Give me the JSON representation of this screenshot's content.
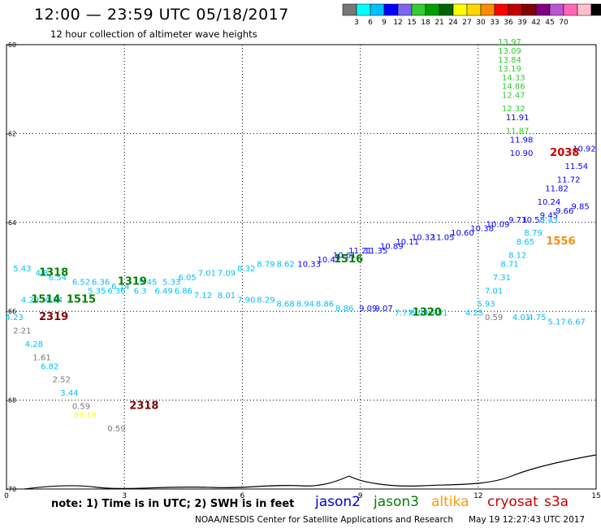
{
  "header": {
    "title": "12:00 — 23:59 UTC 05/18/2017",
    "subtitle": "12 hour collection of altimeter wave heights"
  },
  "legend": {
    "unit": "(ft)",
    "colors": [
      "#777777",
      "#00ffff",
      "#00bfff",
      "#0000ff",
      "#7b68ee",
      "#32cd32",
      "#00a000",
      "#006400",
      "#ffff00",
      "#ffd700",
      "#ff8c00",
      "#ff0000",
      "#c00000",
      "#800000",
      "#800080",
      "#ba55d3",
      "#ff69b4",
      "#ffc0cb",
      "#000000"
    ],
    "labels": [
      "3",
      "6",
      "9",
      "12",
      "15",
      "18",
      "21",
      "24",
      "27",
      "30",
      "33",
      "36",
      "39",
      "42",
      "45",
      "70"
    ]
  },
  "footer": {
    "note": "note: 1) Time is in UTC; 2) SWH is in feet",
    "satellites": [
      {
        "name": "jason2",
        "color": "#0000cc"
      },
      {
        "name": "jason3",
        "color": "#008000"
      },
      {
        "name": "altika",
        "color": "#ff9900"
      },
      {
        "name": "cryosat",
        "color": "#cc0000"
      },
      {
        "name": "s3a",
        "color": "#cc0000"
      }
    ],
    "credit": "NOAA/NESDIS Center for Satellite Applications and Research",
    "timestamp": "May 19 12:27:43 UTC 2017"
  },
  "chart_data": {
    "type": "scatter",
    "title": "12:00 — 23:59 UTC 05/18/2017",
    "subtitle": "12 hour collection of altimeter wave heights",
    "x_ticks": [
      "0",
      "3",
      "6",
      "9",
      "12",
      "15"
    ],
    "y_ticks": [
      "-60",
      "-62",
      "-64",
      "-66",
      "-68",
      "-70"
    ],
    "xlim": [
      0,
      15
    ],
    "ylim": [
      -70,
      -60
    ],
    "grid": true,
    "tracks": [
      {
        "label": "1318",
        "x": 1.2,
        "y": -65.2,
        "color": "#008000"
      },
      {
        "label": "1319",
        "x": 3.2,
        "y": -65.4,
        "color": "#008000"
      },
      {
        "label": "1514",
        "x": 1.0,
        "y": -65.8,
        "color": "#008000"
      },
      {
        "label": "1515",
        "x": 1.9,
        "y": -65.8,
        "color": "#008000"
      },
      {
        "label": "1516",
        "x": 8.7,
        "y": -64.9,
        "color": "#008000"
      },
      {
        "label": "1320",
        "x": 10.7,
        "y": -66.1,
        "color": "#008000"
      },
      {
        "label": "2319",
        "x": 1.2,
        "y": -66.2,
        "color": "#800000"
      },
      {
        "label": "2318",
        "x": 3.5,
        "y": -68.2,
        "color": "#800000"
      },
      {
        "label": "2038",
        "x": 14.2,
        "y": -62.5,
        "color": "#cc0000"
      },
      {
        "label": "1556",
        "x": 14.1,
        "y": -64.5,
        "color": "#ff8c00"
      }
    ],
    "points": [
      {
        "x": 0.4,
        "y": -65.1,
        "v": "5.43",
        "c": "#00bfff"
      },
      {
        "x": 0.9,
        "y": -65.2,
        "v": "4.8",
        "c": "#00bfff"
      },
      {
        "x": 1.3,
        "y": -65.3,
        "v": "6.54",
        "c": "#00bfff"
      },
      {
        "x": 1.9,
        "y": -65.4,
        "v": "6.52",
        "c": "#00bfff"
      },
      {
        "x": 2.4,
        "y": -65.4,
        "v": "6.36",
        "c": "#00bfff"
      },
      {
        "x": 2.9,
        "y": -65.5,
        "v": "6.14",
        "c": "#00bfff"
      },
      {
        "x": 3.6,
        "y": -65.4,
        "v": "5.45",
        "c": "#00bfff"
      },
      {
        "x": 4.2,
        "y": -65.4,
        "v": "5.33",
        "c": "#00bfff"
      },
      {
        "x": 4.6,
        "y": -65.3,
        "v": "6.05",
        "c": "#00bfff"
      },
      {
        "x": 5.1,
        "y": -65.2,
        "v": "7.01",
        "c": "#00bfff"
      },
      {
        "x": 5.6,
        "y": -65.2,
        "v": "7.09",
        "c": "#00bfff"
      },
      {
        "x": 6.1,
        "y": -65.1,
        "v": "8.32",
        "c": "#00bfff"
      },
      {
        "x": 6.6,
        "y": -65.0,
        "v": "8.79",
        "c": "#00bfff"
      },
      {
        "x": 7.1,
        "y": -65.0,
        "v": "8.62",
        "c": "#00bfff"
      },
      {
        "x": 0.6,
        "y": -65.8,
        "v": "4.29",
        "c": "#00bfff"
      },
      {
        "x": 1.2,
        "y": -65.8,
        "v": "4.34",
        "c": "#00bfff"
      },
      {
        "x": 2.3,
        "y": -65.6,
        "v": "5.35",
        "c": "#00bfff"
      },
      {
        "x": 2.8,
        "y": -65.6,
        "v": "6.36",
        "c": "#00bfff"
      },
      {
        "x": 3.4,
        "y": -65.6,
        "v": "6.3",
        "c": "#00bfff"
      },
      {
        "x": 4.0,
        "y": -65.6,
        "v": "6.49",
        "c": "#00bfff"
      },
      {
        "x": 4.5,
        "y": -65.6,
        "v": "6.86",
        "c": "#00bfff"
      },
      {
        "x": 5.0,
        "y": -65.7,
        "v": "7.12",
        "c": "#00bfff"
      },
      {
        "x": 5.6,
        "y": -65.7,
        "v": "8.01",
        "c": "#00bfff"
      },
      {
        "x": 6.1,
        "y": -65.8,
        "v": "7.90",
        "c": "#00bfff"
      },
      {
        "x": 6.6,
        "y": -65.8,
        "v": "8.29",
        "c": "#00bfff"
      },
      {
        "x": 7.1,
        "y": -65.9,
        "v": "8.68",
        "c": "#00bfff"
      },
      {
        "x": 7.6,
        "y": -65.9,
        "v": "8.94",
        "c": "#00bfff"
      },
      {
        "x": 8.1,
        "y": -65.9,
        "v": "8.86",
        "c": "#00bfff"
      },
      {
        "x": 8.6,
        "y": -66.0,
        "v": "8.86",
        "c": "#00bfff"
      },
      {
        "x": 9.2,
        "y": -66.0,
        "v": "9.09",
        "c": "#0000ff"
      },
      {
        "x": 9.6,
        "y": -66.0,
        "v": "9.07",
        "c": "#0000ff"
      },
      {
        "x": 10.1,
        "y": -66.1,
        "v": "7.77",
        "c": "#00bfff"
      },
      {
        "x": 10.5,
        "y": -66.1,
        "v": "6.99",
        "c": "#00bfff"
      },
      {
        "x": 11.0,
        "y": -66.1,
        "v": "6.51",
        "c": "#00bfff"
      },
      {
        "x": 7.7,
        "y": -65.0,
        "v": "10.33",
        "c": "#0000ff"
      },
      {
        "x": 8.2,
        "y": -64.9,
        "v": "10.42",
        "c": "#0000ff"
      },
      {
        "x": 8.6,
        "y": -64.8,
        "v": "10.61",
        "c": "#0000ff"
      },
      {
        "x": 9.0,
        "y": -64.7,
        "v": "11.21",
        "c": "#0000ff"
      },
      {
        "x": 9.4,
        "y": -64.7,
        "v": "11.35",
        "c": "#0000ff"
      },
      {
        "x": 9.8,
        "y": -64.6,
        "v": "10.89",
        "c": "#0000ff"
      },
      {
        "x": 10.2,
        "y": -64.5,
        "v": "10.11",
        "c": "#0000ff"
      },
      {
        "x": 10.6,
        "y": -64.4,
        "v": "10.32",
        "c": "#0000ff"
      },
      {
        "x": 11.1,
        "y": -64.4,
        "v": "11.05",
        "c": "#0000ff"
      },
      {
        "x": 11.6,
        "y": -64.3,
        "v": "10.60",
        "c": "#0000ff"
      },
      {
        "x": 12.1,
        "y": -64.2,
        "v": "10.38",
        "c": "#0000ff"
      },
      {
        "x": 12.5,
        "y": -64.1,
        "v": "10.09",
        "c": "#0000ff"
      },
      {
        "x": 13.0,
        "y": -64.0,
        "v": "9.73",
        "c": "#0000ff"
      },
      {
        "x": 13.4,
        "y": -64.0,
        "v": "10.58",
        "c": "#0000ff"
      },
      {
        "x": 13.8,
        "y": -63.9,
        "v": "9.45",
        "c": "#0000ff"
      },
      {
        "x": 14.2,
        "y": -63.8,
        "v": "9.66",
        "c": "#0000ff"
      },
      {
        "x": 14.6,
        "y": -63.7,
        "v": "9.85",
        "c": "#0000ff"
      },
      {
        "x": 13.8,
        "y": -64.0,
        "v": "8.43",
        "c": "#00bfff"
      },
      {
        "x": 13.4,
        "y": -64.3,
        "v": "8.79",
        "c": "#00bfff"
      },
      {
        "x": 13.2,
        "y": -64.5,
        "v": "8.65",
        "c": "#00bfff"
      },
      {
        "x": 13.0,
        "y": -64.8,
        "v": "8.12",
        "c": "#00bfff"
      },
      {
        "x": 12.8,
        "y": -65.0,
        "v": "8.71",
        "c": "#00bfff"
      },
      {
        "x": 12.6,
        "y": -65.3,
        "v": "7.31",
        "c": "#00bfff"
      },
      {
        "x": 12.4,
        "y": -65.6,
        "v": "7.01",
        "c": "#00bfff"
      },
      {
        "x": 12.2,
        "y": -65.9,
        "v": "5.93",
        "c": "#00bfff"
      },
      {
        "x": 11.9,
        "y": -66.1,
        "v": "4.25",
        "c": "#00bfff"
      },
      {
        "x": 12.4,
        "y": -66.2,
        "v": "0.59",
        "c": "#777777"
      },
      {
        "x": 13.1,
        "y": -66.2,
        "v": "4.01",
        "c": "#00bfff"
      },
      {
        "x": 13.5,
        "y": -66.2,
        "v": "4.75",
        "c": "#00bfff"
      },
      {
        "x": 14.0,
        "y": -66.3,
        "v": "5.17",
        "c": "#00bfff"
      },
      {
        "x": 14.5,
        "y": -66.3,
        "v": "6.67",
        "c": "#00bfff"
      },
      {
        "x": 12.8,
        "y": -60.0,
        "v": "13.97",
        "c": "#32cd32"
      },
      {
        "x": 12.8,
        "y": -60.2,
        "v": "13.09",
        "c": "#32cd32"
      },
      {
        "x": 12.8,
        "y": -60.4,
        "v": "13.84",
        "c": "#32cd32"
      },
      {
        "x": 12.8,
        "y": -60.6,
        "v": "13.19",
        "c": "#32cd32"
      },
      {
        "x": 12.9,
        "y": -60.8,
        "v": "14.33",
        "c": "#32cd32"
      },
      {
        "x": 12.9,
        "y": -61.0,
        "v": "14.86",
        "c": "#32cd32"
      },
      {
        "x": 12.9,
        "y": -61.2,
        "v": "12.47",
        "c": "#32cd32"
      },
      {
        "x": 12.9,
        "y": -61.5,
        "v": "12.32",
        "c": "#32cd32"
      },
      {
        "x": 13.0,
        "y": -61.7,
        "v": "11.91",
        "c": "#0000ff"
      },
      {
        "x": 13.0,
        "y": -62.0,
        "v": "11.87",
        "c": "#32cd32"
      },
      {
        "x": 13.1,
        "y": -62.2,
        "v": "11.98",
        "c": "#0000ff"
      },
      {
        "x": 13.1,
        "y": -62.5,
        "v": "10.90",
        "c": "#0000ff"
      },
      {
        "x": 14.7,
        "y": -62.4,
        "v": "10.92",
        "c": "#0000ff"
      },
      {
        "x": 14.5,
        "y": -62.8,
        "v": "11.54",
        "c": "#0000ff"
      },
      {
        "x": 14.3,
        "y": -63.1,
        "v": "11.72",
        "c": "#0000ff"
      },
      {
        "x": 14.0,
        "y": -63.3,
        "v": "11.82",
        "c": "#0000ff"
      },
      {
        "x": 13.8,
        "y": -63.6,
        "v": "10.24",
        "c": "#0000ff"
      },
      {
        "x": 0.2,
        "y": -66.2,
        "v": "4.23",
        "c": "#00bfff"
      },
      {
        "x": 0.4,
        "y": -66.5,
        "v": "2.21",
        "c": "#777777"
      },
      {
        "x": 0.7,
        "y": -66.8,
        "v": "4.28",
        "c": "#00bfff"
      },
      {
        "x": 0.9,
        "y": -67.1,
        "v": "1.61",
        "c": "#777777"
      },
      {
        "x": 1.1,
        "y": -67.3,
        "v": "6.82",
        "c": "#00bfff"
      },
      {
        "x": 1.4,
        "y": -67.6,
        "v": "2.52",
        "c": "#777777"
      },
      {
        "x": 1.6,
        "y": -67.9,
        "v": "3.44",
        "c": "#00bfff"
      },
      {
        "x": 1.9,
        "y": -68.2,
        "v": "0.59",
        "c": "#777777"
      },
      {
        "x": 2.0,
        "y": -68.4,
        "v": "23.18",
        "c": "#ffff00"
      },
      {
        "x": 2.8,
        "y": -68.7,
        "v": "0.59",
        "c": "#777777"
      }
    ]
  }
}
